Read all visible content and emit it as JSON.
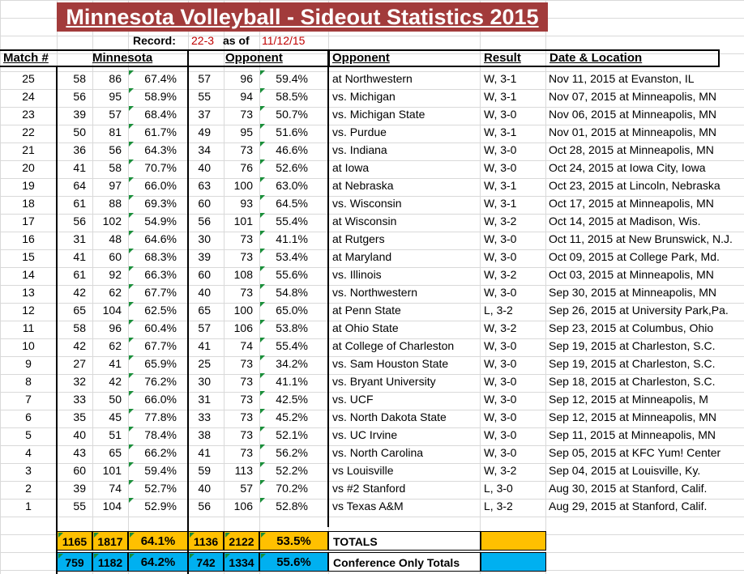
{
  "title": "Minnesota Volleyball - Sideout Statistics 2015",
  "record": {
    "label": "Record:",
    "value": "22-3",
    "as_of_label": "as of",
    "date": "11/12/15"
  },
  "headers": {
    "match": "Match #",
    "minnesota": "Minnesota",
    "opponent_stats": "Opponent",
    "opponent": "Opponent",
    "result": "Result",
    "date_location": "Date & Location"
  },
  "rows": [
    [
      "25",
      "58",
      "86",
      "67.4%",
      "57",
      "96",
      "59.4%",
      "at Northwestern",
      "W, 3-1",
      "Nov 11, 2015 at Evanston, IL"
    ],
    [
      "24",
      "56",
      "95",
      "58.9%",
      "55",
      "94",
      "58.5%",
      "vs. Michigan",
      "W, 3-1",
      "Nov 07, 2015 at Minneapolis, MN"
    ],
    [
      "23",
      "39",
      "57",
      "68.4%",
      "37",
      "73",
      "50.7%",
      "vs. Michigan State",
      "W, 3-0",
      "Nov 06, 2015 at Minneapolis, MN"
    ],
    [
      "22",
      "50",
      "81",
      "61.7%",
      "49",
      "95",
      "51.6%",
      "vs. Purdue",
      "W, 3-1",
      "Nov 01, 2015 at Minneapolis, MN"
    ],
    [
      "21",
      "36",
      "56",
      "64.3%",
      "34",
      "73",
      "46.6%",
      "vs. Indiana",
      "W, 3-0",
      "Oct 28, 2015 at Minneapolis, MN"
    ],
    [
      "20",
      "41",
      "58",
      "70.7%",
      "40",
      "76",
      "52.6%",
      "at Iowa",
      "W, 3-0",
      "Oct 24, 2015 at Iowa City, Iowa"
    ],
    [
      "19",
      "64",
      "97",
      "66.0%",
      "63",
      "100",
      "63.0%",
      "at Nebraska",
      "W, 3-1",
      "Oct 23, 2015 at Lincoln, Nebraska"
    ],
    [
      "18",
      "61",
      "88",
      "69.3%",
      "60",
      "93",
      "64.5%",
      "vs. Wisconsin",
      "W, 3-1",
      "Oct 17, 2015 at Minneapolis, MN"
    ],
    [
      "17",
      "56",
      "102",
      "54.9%",
      "56",
      "101",
      "55.4%",
      "at Wisconsin",
      "W, 3-2",
      "Oct 14, 2015 at Madison, Wis."
    ],
    [
      "16",
      "31",
      "48",
      "64.6%",
      "30",
      "73",
      "41.1%",
      "at Rutgers",
      "W, 3-0",
      "Oct 11, 2015 at New Brunswick, N.J."
    ],
    [
      "15",
      "41",
      "60",
      "68.3%",
      "39",
      "73",
      "53.4%",
      "at Maryland",
      "W, 3-0",
      "Oct 09, 2015 at College Park, Md."
    ],
    [
      "14",
      "61",
      "92",
      "66.3%",
      "60",
      "108",
      "55.6%",
      "vs. Illinois",
      "W, 3-2",
      "Oct 03, 2015 at Minneapolis, MN"
    ],
    [
      "13",
      "42",
      "62",
      "67.7%",
      "40",
      "73",
      "54.8%",
      "vs. Northwestern",
      "W, 3-0",
      "Sep 30, 2015 at Minneapolis, MN"
    ],
    [
      "12",
      "65",
      "104",
      "62.5%",
      "65",
      "100",
      "65.0%",
      "at Penn State",
      "L, 3-2",
      "Sep 26, 2015 at University Park,Pa."
    ],
    [
      "11",
      "58",
      "96",
      "60.4%",
      "57",
      "106",
      "53.8%",
      "at Ohio State",
      "W, 3-2",
      "Sep 23, 2015 at Columbus, Ohio"
    ],
    [
      "10",
      "42",
      "62",
      "67.7%",
      "41",
      "74",
      "55.4%",
      "at College of Charleston",
      "W, 3-0",
      "Sep 19, 2015 at Charleston, S.C."
    ],
    [
      "9",
      "27",
      "41",
      "65.9%",
      "25",
      "73",
      "34.2%",
      "vs. Sam Houston State",
      "W, 3-0",
      "Sep 19, 2015 at Charleston, S.C."
    ],
    [
      "8",
      "32",
      "42",
      "76.2%",
      "30",
      "73",
      "41.1%",
      "vs. Bryant University",
      "W, 3-0",
      "Sep 18, 2015 at Charleston, S.C."
    ],
    [
      "7",
      "33",
      "50",
      "66.0%",
      "31",
      "73",
      "42.5%",
      "vs. UCF",
      "W, 3-0",
      "Sep 12, 2015 at Minneapolis, M"
    ],
    [
      "6",
      "35",
      "45",
      "77.8%",
      "33",
      "73",
      "45.2%",
      "vs. North Dakota State",
      "W, 3-0",
      "Sep 12, 2015 at Minneapolis, MN"
    ],
    [
      "5",
      "40",
      "51",
      "78.4%",
      "38",
      "73",
      "52.1%",
      "vs. UC Irvine",
      "W, 3-0",
      "Sep 11, 2015 at Minneapolis, MN"
    ],
    [
      "4",
      "43",
      "65",
      "66.2%",
      "41",
      "73",
      "56.2%",
      "vs. North Carolina",
      "W, 3-0",
      "Sep 05, 2015 at KFC Yum! Center"
    ],
    [
      "3",
      "60",
      "101",
      "59.4%",
      "59",
      "113",
      "52.2%",
      "vs Louisville",
      "W, 3-2",
      "Sep 04, 2015 at Louisville, Ky."
    ],
    [
      "2",
      "39",
      "74",
      "52.7%",
      "40",
      "57",
      "70.2%",
      "vs #2 Stanford",
      "L, 3-0",
      "Aug 30, 2015 at Stanford, Calif."
    ],
    [
      "1",
      "55",
      "104",
      "52.9%",
      "56",
      "106",
      "52.8%",
      "vs Texas A&M",
      "L, 3-2",
      "Aug 29, 2015 at Stanford, Calif."
    ]
  ],
  "totals": {
    "all": {
      "label": "TOTALS",
      "values": [
        "1165",
        "1817",
        "64.1%",
        "1136",
        "2122",
        "53.5%"
      ],
      "color": "#ffc000"
    },
    "conference": {
      "label": "Conference Only Totals",
      "values": [
        "759",
        "1182",
        "64.2%",
        "742",
        "1334",
        "55.6%"
      ],
      "color": "#00b0f0"
    }
  },
  "colors": {
    "title_bg": "#a23b3b",
    "record_red": "#c00000",
    "corner_marker": "#1a8f3a"
  }
}
